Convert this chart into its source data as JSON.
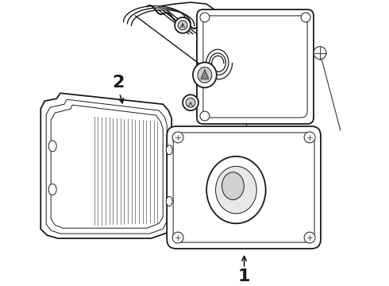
{
  "background_color": "#ffffff",
  "line_color": "#1a1a1a",
  "label_1": "1",
  "label_2": "2",
  "label_fontsize": 13,
  "figsize": [
    4.9,
    3.6
  ],
  "dpi": 100,
  "lw_main": 1.3,
  "lw_thin": 0.7,
  "lw_thick": 1.8
}
